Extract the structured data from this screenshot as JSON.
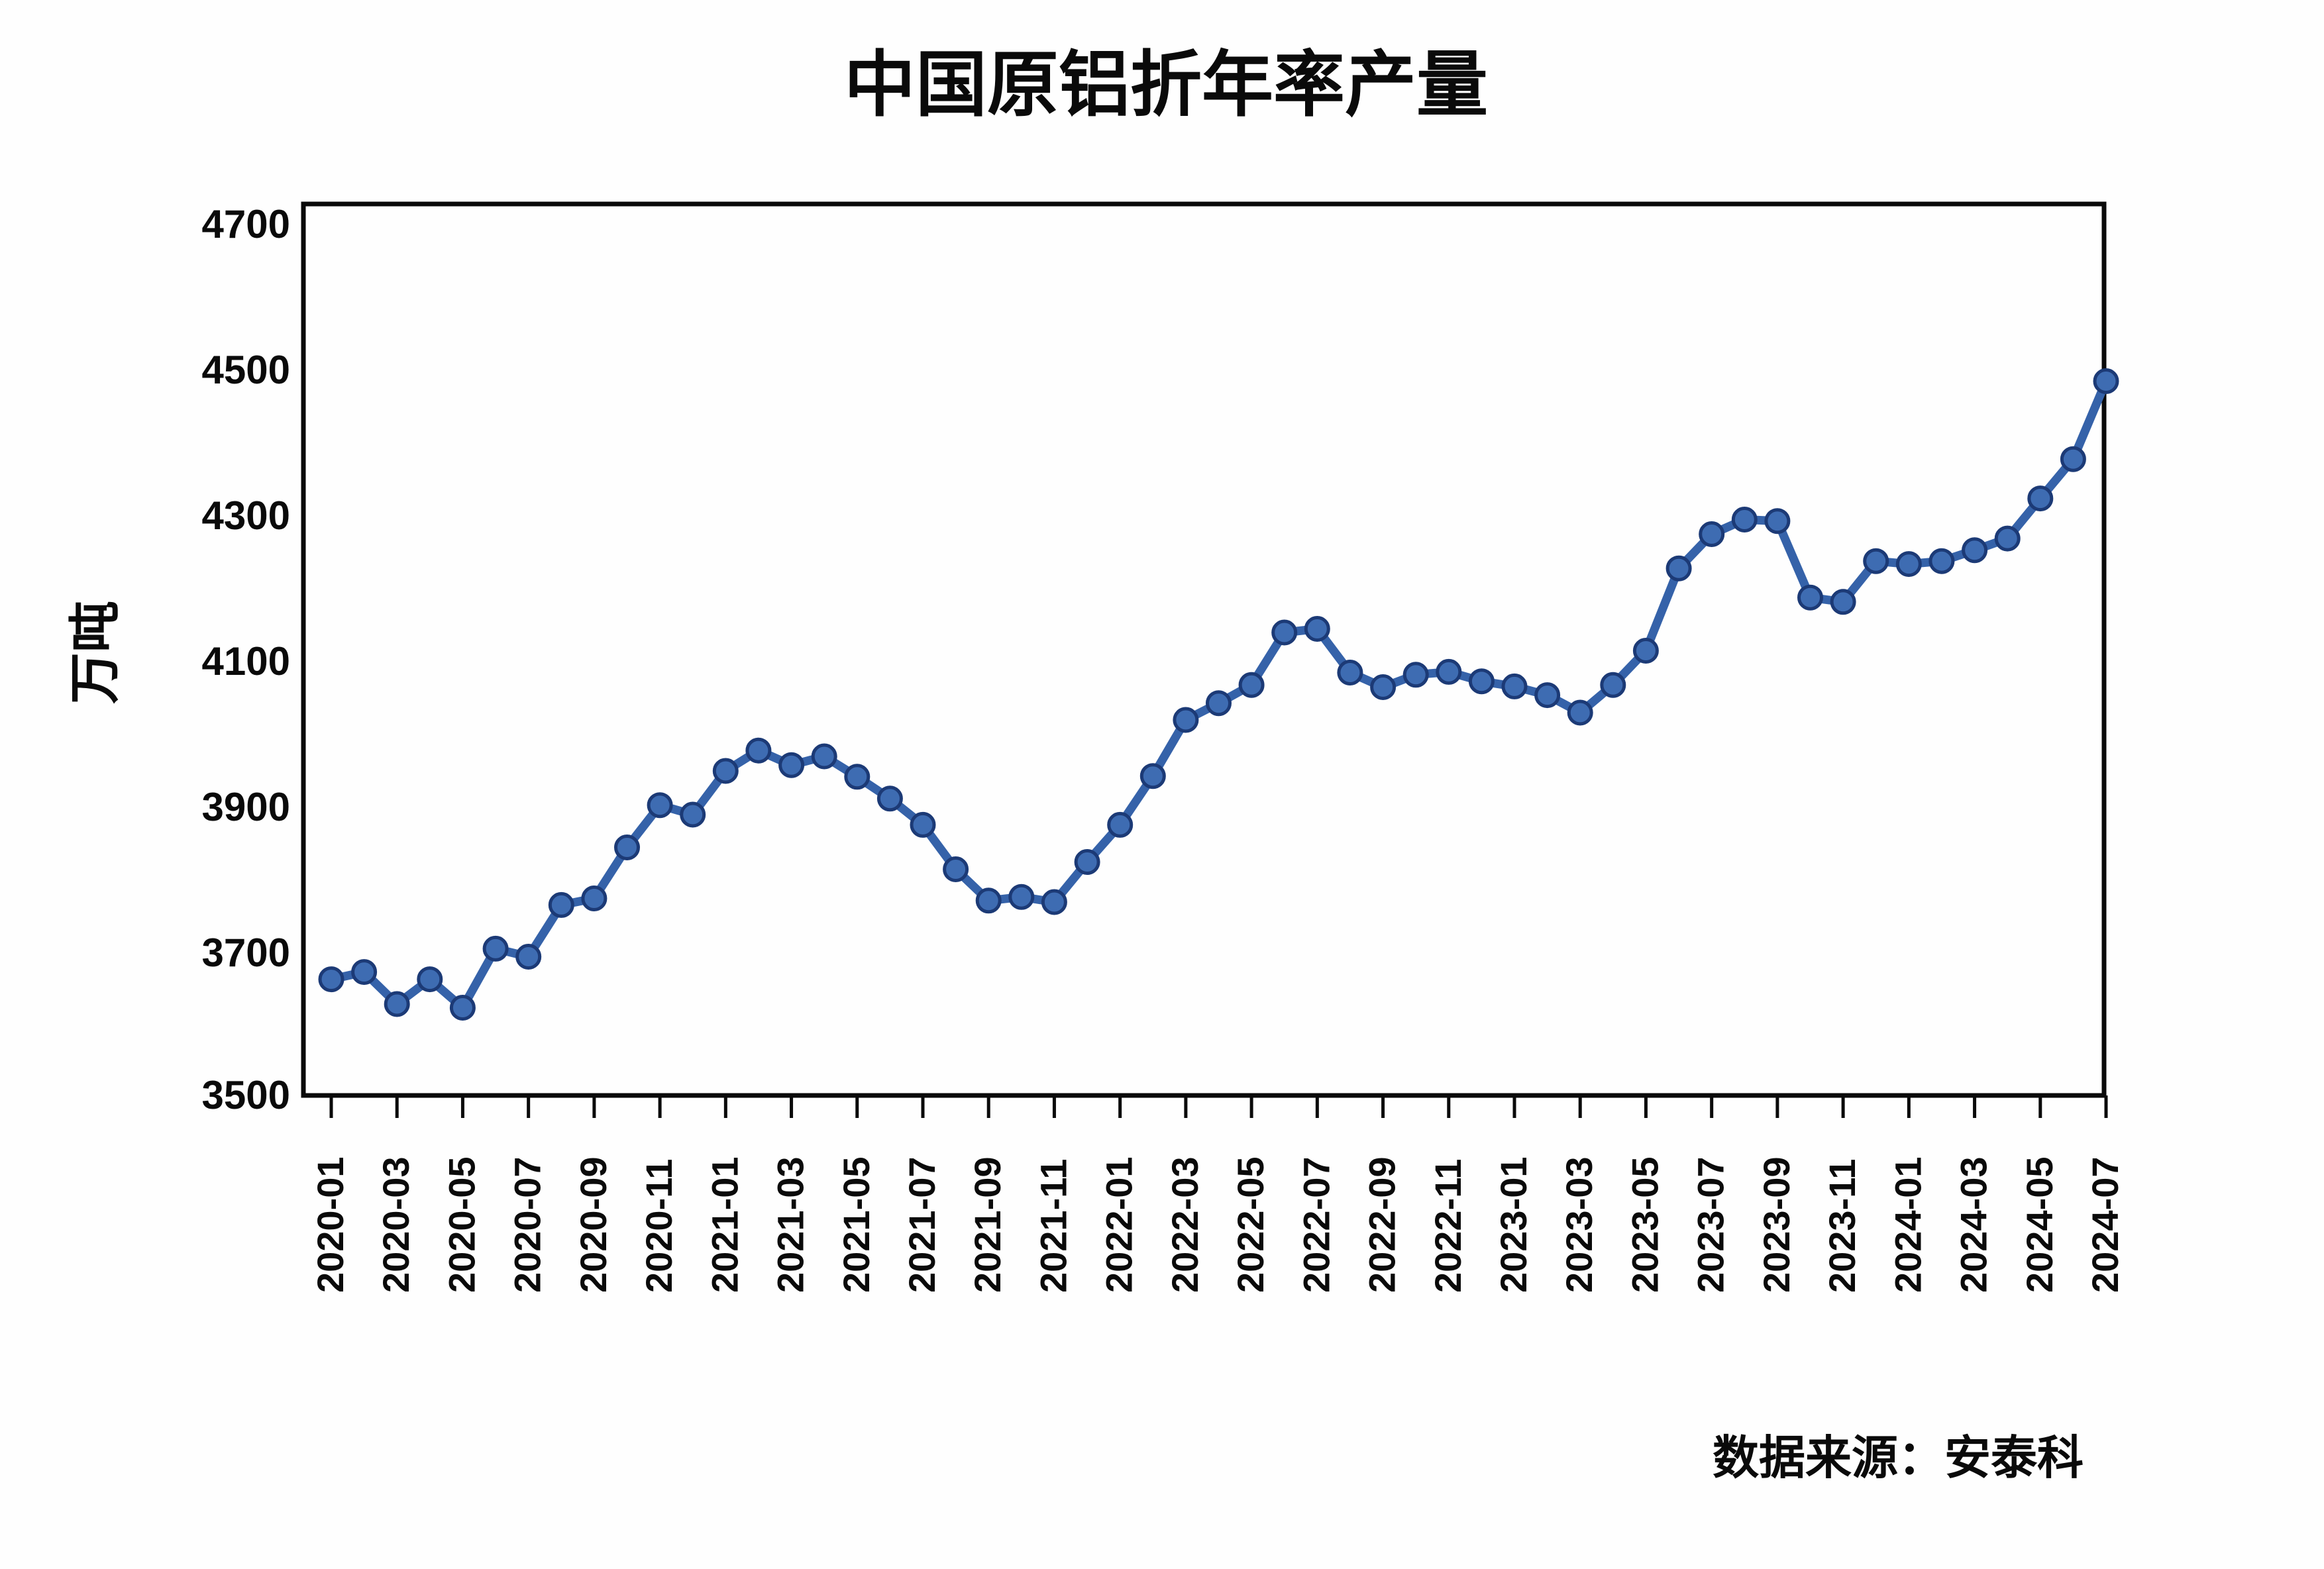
{
  "title": "中国原铝折年率产量",
  "source_note": "数据来源：安泰科",
  "chart_data": {
    "type": "line",
    "title": "中国原铝折年率产量",
    "xlabel": "",
    "ylabel": "万吨",
    "legend_position": "none",
    "grid": false,
    "x_tick_step": 2,
    "y_ticks": [
      3500,
      3700,
      3900,
      4100,
      4300,
      4500,
      4700
    ],
    "ylim": [
      3500,
      4730
    ],
    "categories": [
      "2020-01",
      "2020-02",
      "2020-03",
      "2020-04",
      "2020-05",
      "2020-06",
      "2020-07",
      "2020-08",
      "2020-09",
      "2020-10",
      "2020-11",
      "2020-12",
      "2021-01",
      "2021-02",
      "2021-03",
      "2021-04",
      "2021-05",
      "2021-06",
      "2021-07",
      "2021-08",
      "2021-09",
      "2021-10",
      "2021-11",
      "2021-12",
      "2022-01",
      "2022-02",
      "2022-03",
      "2022-04",
      "2022-05",
      "2022-06",
      "2022-07",
      "2022-08",
      "2022-09",
      "2022-10",
      "2022-11",
      "2022-12",
      "2023-01",
      "2023-02",
      "2023-03",
      "2023-04",
      "2023-05",
      "2023-06",
      "2023-07",
      "2023-08",
      "2023-09",
      "2023-10",
      "2023-11",
      "2023-12",
      "2024-01",
      "2024-02",
      "2024-03",
      "2024-04",
      "2024-05",
      "2024-06",
      "2024-07"
    ],
    "values": [
      3664,
      3674,
      3630,
      3664,
      3625,
      3706,
      3695,
      3766,
      3775,
      3845,
      3903,
      3890,
      3950,
      3978,
      3958,
      3970,
      3942,
      3912,
      3876,
      3815,
      3772,
      3777,
      3770,
      3825,
      3876,
      3943,
      4020,
      4043,
      4068,
      4140,
      4145,
      4085,
      4065,
      4082,
      4086,
      4073,
      4066,
      4054,
      4030,
      4068,
      4115,
      4228,
      4275,
      4295,
      4293,
      4188,
      4182,
      4238,
      4234,
      4238,
      4253,
      4269,
      4324,
      4378,
      4485
    ],
    "line_color": "#3562a9",
    "marker_fill_color": "#3e6cb2",
    "marker_edge_color": "#1c3a76",
    "axis_color": "#0a0a0a"
  }
}
